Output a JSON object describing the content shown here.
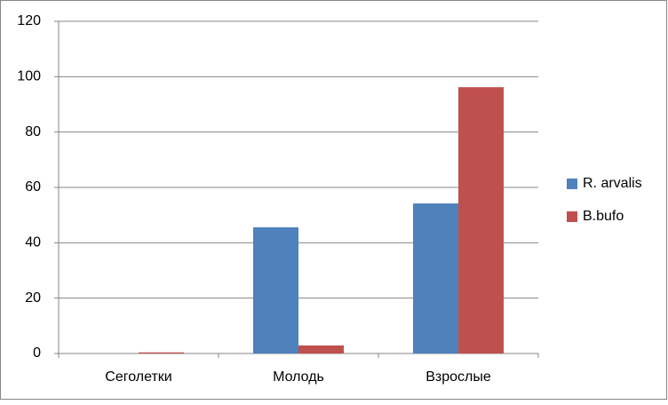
{
  "chart_data": {
    "type": "bar",
    "categories": [
      "Сеголетки",
      "Молодь",
      "Взрослые"
    ],
    "series": [
      {
        "name": "R. arvalis",
        "color": "#4f81bd",
        "values": [
          0,
          45.6,
          54.2
        ]
      },
      {
        "name": "B.bufo",
        "color": "#c0504d",
        "values": [
          0.4,
          2.9,
          96.2
        ]
      }
    ],
    "ylim": [
      0,
      120
    ],
    "yticks": [
      0,
      20,
      40,
      60,
      80,
      100,
      120
    ],
    "grid": true,
    "legend": "right"
  }
}
